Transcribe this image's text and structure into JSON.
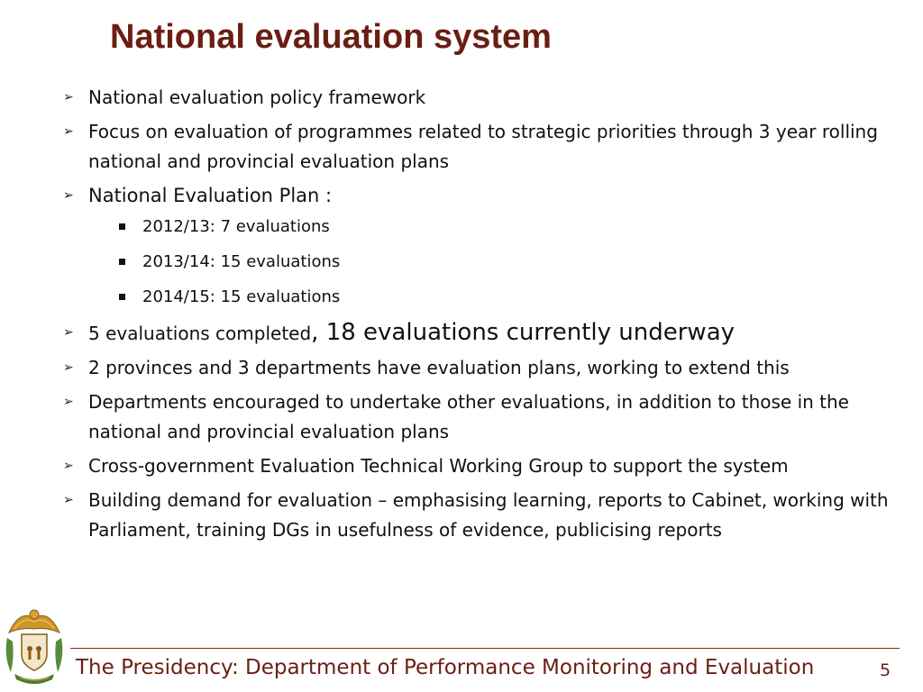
{
  "slide": {
    "title": "National evaluation system",
    "bullets": [
      "National evaluation policy framework",
      "Focus on evaluation of programmes related to strategic priorities through 3 year rolling national and provincial evaluation plans",
      "National Evaluation Plan :",
      "5 evaluations completed",
      ", 18 evaluations currently underway",
      "2 provinces and 3 departments have evaluation plans, working to extend this",
      "Departments encouraged to undertake other evaluations, in addition to those in the national and provincial evaluation plans",
      "Cross-government Evaluation Technical Working Group to support the system",
      "Building demand for evaluation – emphasising learning, reports to Cabinet, working with Parliament, training DGs in usefulness of evidence, publicising reports"
    ],
    "sub_bullets": [
      "2012/13: 7 evaluations",
      "2013/14: 15 evaluations",
      "2014/15: 15 evaluations"
    ]
  },
  "footer": {
    "text": "The Presidency: Department of Performance Monitoring and Evaluation",
    "page_number": "5"
  },
  "colors": {
    "accent": "#6b1e14",
    "footer_line": "#8a2a1c"
  },
  "icons": {
    "bullet": "arrowhead-icon",
    "sub_bullet": "square-icon",
    "logo": "coat-of-arms-icon"
  }
}
